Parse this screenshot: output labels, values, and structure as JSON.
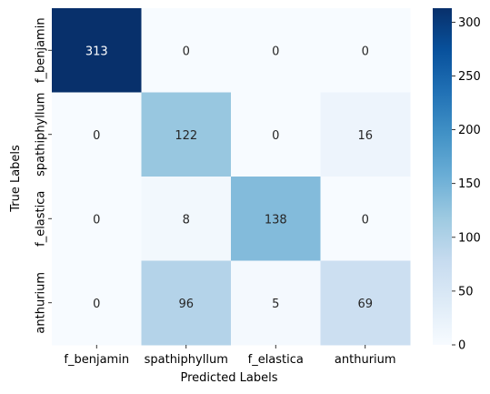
{
  "chart_data": {
    "type": "heatmap",
    "title": "",
    "xlabel": "Predicted Labels",
    "ylabel": "True Labels",
    "x_categories": [
      "f_benjamin",
      "spathiphyllum",
      "f_elastica",
      "anthurium"
    ],
    "y_categories": [
      "f_benjamin",
      "spathiphyllum",
      "f_elastica",
      "anthurium"
    ],
    "values": [
      [
        313,
        0,
        0,
        0
      ],
      [
        0,
        122,
        0,
        16
      ],
      [
        0,
        8,
        138,
        0
      ],
      [
        0,
        96,
        5,
        69
      ]
    ],
    "colorbar": {
      "ticks": [
        0,
        50,
        100,
        150,
        200,
        250,
        300
      ],
      "range": [
        0,
        313
      ],
      "colormap": "Blues",
      "low_color": "#f7fbff",
      "high_color": "#08306b"
    }
  }
}
